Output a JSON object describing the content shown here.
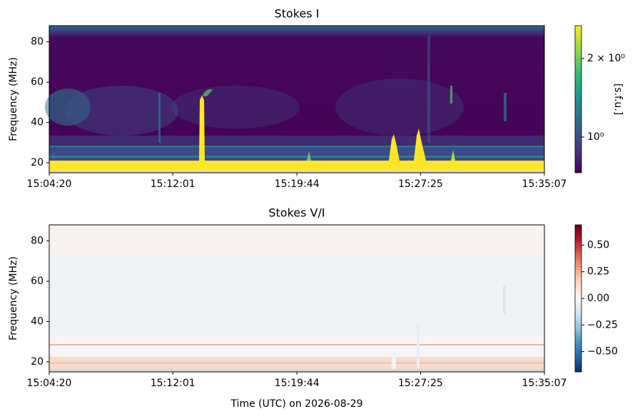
{
  "chart_data": [
    {
      "type": "heatmap",
      "title": "Stokes I",
      "ylabel": "Frequency (MHz)",
      "colorbar_label": "[s.f.u.]",
      "colormap": "viridis",
      "cscale": "log",
      "clim": [
        0.73,
        2.67
      ],
      "cticks": [
        {
          "value": 1,
          "label": "10⁰"
        },
        {
          "value": 2,
          "label": "2 × 10⁰"
        }
      ],
      "xlim": [
        "15:04:20",
        "15:35:07"
      ],
      "xticks": [
        "15:04:20",
        "15:12:01",
        "15:19:44",
        "15:27:25",
        "15:35:07"
      ],
      "ylim": [
        15,
        88
      ],
      "yticks": [
        20,
        40,
        60,
        80
      ]
    },
    {
      "type": "heatmap",
      "title": "Stokes V/I",
      "ylabel": "Frequency (MHz)",
      "xlabel": "Time (UTC) on 2026-08-29",
      "colormap": "RdBu_r",
      "cscale": "linear",
      "clim": [
        -0.69,
        0.69
      ],
      "cticks": [
        {
          "value": -0.5,
          "label": "−0.50"
        },
        {
          "value": -0.25,
          "label": "−0.25"
        },
        {
          "value": 0,
          "label": "0.00"
        },
        {
          "value": 0.25,
          "label": "0.25"
        },
        {
          "value": 0.5,
          "label": "0.50"
        }
      ],
      "xlim": [
        "15:04:20",
        "15:35:07"
      ],
      "xticks": [
        "15:04:20",
        "15:12:01",
        "15:19:44",
        "15:27:25",
        "15:35:07"
      ],
      "ylim": [
        15,
        88
      ],
      "yticks": [
        20,
        40,
        60,
        80
      ]
    }
  ]
}
